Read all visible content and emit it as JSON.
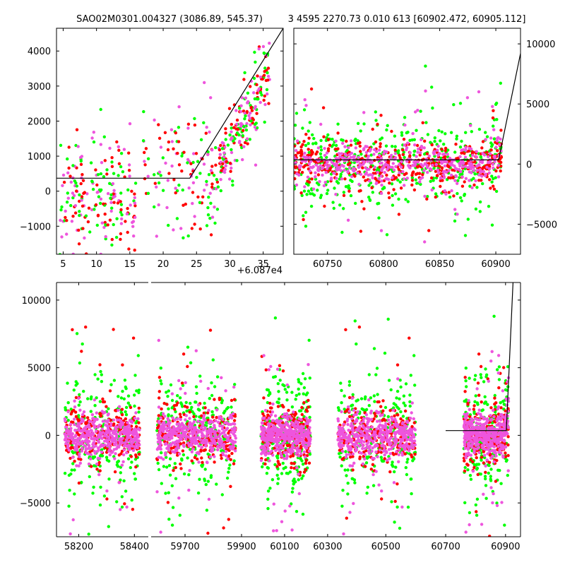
{
  "figure": {
    "title_left": "SAO02M0301.004327 (3086.89, 545.37)",
    "title_right": "3 4595 2270.73 0.010 613 [60902.472, 60905.112]",
    "offset_label": "+6.087e4"
  },
  "colors": {
    "green": "#00ff00",
    "red": "#ff0000",
    "magenta": "#ee55dd",
    "line": "#000000"
  },
  "chart_data": [
    {
      "id": "zoom_left",
      "type": "scatter",
      "title": "SAO02M0301.004327 (3086.89, 545.37)",
      "xlim": [
        4,
        38
      ],
      "ylim": [
        -1800,
        4650
      ],
      "x_offset": 60870,
      "xticks": [
        5,
        10,
        15,
        20,
        25,
        30,
        35
      ],
      "yticks": [
        -1000,
        0,
        1000,
        2000,
        3000,
        4000
      ],
      "model_line": [
        [
          4,
          370
        ],
        [
          24,
          370
        ],
        [
          38,
          4650
        ]
      ],
      "clusters": [
        {
          "x": [
            4.5,
            16
          ],
          "y_center": -100,
          "spread": 700,
          "n_each": 70
        },
        {
          "x": [
            17,
            21
          ],
          "y_center": 700,
          "spread": 800,
          "n_each": 12
        },
        {
          "x": [
            21,
            24
          ],
          "y_center": 600,
          "spread": 900,
          "n_each": 12
        },
        {
          "x": [
            24,
            28
          ],
          "y_center": 200,
          "spread": 700,
          "n_each": 22
        },
        {
          "x": [
            28,
            36
          ],
          "y_center": "rise",
          "spread": 500,
          "n_each": 70
        }
      ]
    },
    {
      "id": "zoom_right",
      "type": "scatter",
      "xlim": [
        60720,
        60922
      ],
      "ylim": [
        -7500,
        11300
      ],
      "xticks": [
        60750,
        60800,
        60850,
        60900
      ],
      "yticks": [
        -5000,
        0,
        5000,
        10000
      ],
      "yaxis_side": "right",
      "model_line": [
        [
          60720,
          350
        ],
        [
          60902.5,
          350
        ],
        [
          60922,
          9200
        ]
      ],
      "band": {
        "x": [
          60720,
          60905
        ],
        "y_center": 0,
        "spread": 900,
        "n_each": 420
      }
    },
    {
      "id": "broken_full",
      "type": "scatter",
      "ylim": [
        -7500,
        11300
      ],
      "yticks": [
        -5000,
        0,
        5000,
        10000
      ],
      "segments": [
        {
          "xlim": [
            58120,
            58450
          ],
          "xticks": [
            58200,
            58400
          ],
          "data": [
            58150,
            58420
          ]
        },
        {
          "xlim": [
            59580,
            59900
          ],
          "xticks": [
            59700,
            59900
          ],
          "data": [
            59600,
            59880
          ]
        },
        {
          "xlim": [
            59900,
            60320
          ],
          "xticks": [
            60100,
            60300
          ],
          "data": [
            59990,
            60220
          ]
        },
        {
          "xlim": [
            60320,
            60950
          ],
          "xticks": [
            60500,
            60700,
            60900
          ],
          "data": [
            60340,
            60600,
            60760,
            60910
          ]
        }
      ],
      "model_line": [
        [
          60700,
          350
        ],
        [
          60902.5,
          350
        ],
        [
          60925,
          11300
        ]
      ]
    }
  ]
}
